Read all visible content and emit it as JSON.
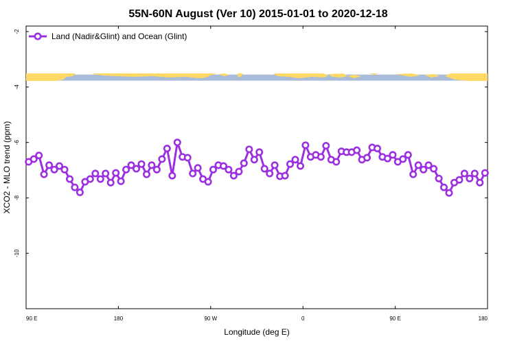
{
  "chart_data": {
    "type": "line",
    "title": "55N-60N August (Ver 10)   2015-01-01 to 2020-12-18",
    "xlabel": "Longitude (deg E)",
    "ylabel": "XCO2 - MLO trend (ppm)",
    "x_ticks": [
      {
        "value": 90,
        "label": "90 E"
      },
      {
        "value": 180,
        "label": "180"
      },
      {
        "value": 270,
        "label": "90 W"
      },
      {
        "value": 360,
        "label": "0"
      },
      {
        "value": 450,
        "label": "90 E"
      },
      {
        "value": 540,
        "label": "180"
      }
    ],
    "y_ticks": [
      {
        "value": -2,
        "label": "-2"
      },
      {
        "value": -4,
        "label": "-4"
      },
      {
        "value": -6,
        "label": "-6"
      },
      {
        "value": -8,
        "label": "-8"
      },
      {
        "value": -10,
        "label": "-10"
      }
    ],
    "xlim": [
      90,
      540
    ],
    "ylim": [
      -12,
      -1.8
    ],
    "grid": false,
    "legend_position": "top-left",
    "map_strip": {
      "y_range": [
        -3.77,
        -3.55
      ],
      "ocean_color": "#a9bcd9",
      "land_color": "#ffd966"
    },
    "series": [
      {
        "name": "Land (Nadir&Glint) and Ocean (Glint)",
        "color": "#9b30e0",
        "x": [
          92.5,
          97.5,
          102.5,
          107.5,
          112.5,
          117.5,
          122.5,
          127.5,
          132.5,
          137.5,
          142.5,
          147.5,
          152.5,
          157.5,
          162.5,
          167.5,
          172.5,
          177.5,
          182.5,
          187.5,
          192.5,
          197.5,
          202.5,
          207.5,
          212.5,
          217.5,
          222.5,
          227.5,
          232.5,
          237.5,
          242.5,
          247.5,
          252.5,
          257.5,
          262.5,
          267.5,
          272.5,
          277.5,
          282.5,
          287.5,
          292.5,
          297.5,
          302.5,
          307.5,
          312.5,
          317.5,
          322.5,
          327.5,
          332.5,
          337.5,
          342.5,
          347.5,
          352.5,
          357.5,
          362.5,
          367.5,
          372.5,
          377.5,
          382.5,
          387.5,
          392.5,
          397.5,
          402.5,
          407.5,
          412.5,
          417.5,
          422.5,
          427.5,
          432.5,
          437.5,
          442.5,
          447.5,
          452.5,
          457.5,
          462.5,
          467.5,
          472.5,
          477.5,
          482.5,
          487.5,
          492.5,
          497.5,
          502.5,
          507.5,
          512.5,
          517.5,
          522.5,
          527.5,
          532.5,
          537.5
        ],
        "values": [
          -6.7,
          -6.6,
          -6.47,
          -7.15,
          -6.82,
          -6.98,
          -6.85,
          -6.98,
          -7.32,
          -7.62,
          -7.8,
          -7.42,
          -7.32,
          -7.12,
          -7.32,
          -7.12,
          -7.45,
          -7.1,
          -7.4,
          -6.98,
          -6.82,
          -6.95,
          -6.78,
          -7.15,
          -6.82,
          -6.98,
          -6.6,
          -6.22,
          -7.2,
          -6.0,
          -6.52,
          -6.55,
          -7.12,
          -6.92,
          -7.32,
          -7.42,
          -6.98,
          -6.82,
          -6.85,
          -6.98,
          -7.2,
          -7.05,
          -6.75,
          -6.25,
          -6.62,
          -6.35,
          -6.95,
          -7.12,
          -6.82,
          -7.22,
          -7.2,
          -6.78,
          -6.62,
          -6.85,
          -6.1,
          -6.52,
          -6.45,
          -6.52,
          -6.12,
          -6.62,
          -6.7,
          -6.32,
          -6.35,
          -6.35,
          -6.28,
          -6.62,
          -6.55,
          -6.18,
          -6.22,
          -6.52,
          -6.58,
          -6.45,
          -6.7,
          -6.6,
          -6.45,
          -7.15,
          -6.82,
          -6.98,
          -6.82,
          -6.95,
          -7.3,
          -7.62,
          -7.82,
          -7.45,
          -7.35,
          -7.12,
          -7.3,
          -7.12,
          -7.45,
          -7.1
        ]
      }
    ]
  }
}
